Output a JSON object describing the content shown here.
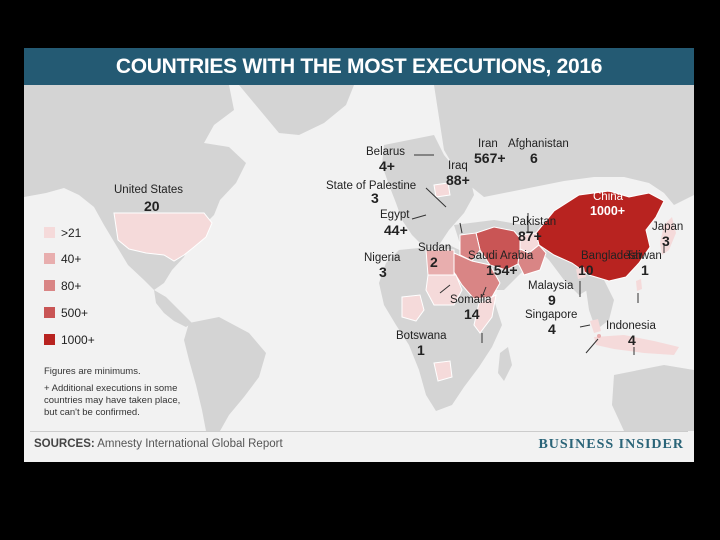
{
  "title": "COUNTRIES WITH THE MOST EXECUTIONS, 2016",
  "colors": {
    "header": "#245a73",
    "land": "#d4d4d4",
    "water": "#f2f2f2",
    "tier_21": "#f5dada",
    "tier_40": "#e8aeae",
    "tier_80": "#d98585",
    "tier_500": "#c95555",
    "tier_1000": "#b82320"
  },
  "legend": [
    {
      "label": ">21",
      "color": "#f5dada"
    },
    {
      "label": "40+",
      "color": "#e8aeae"
    },
    {
      "label": "80+",
      "color": "#d98585"
    },
    {
      "label": "500+",
      "color": "#c95555"
    },
    {
      "label": "1000+",
      "color": "#b82320"
    }
  ],
  "notes": {
    "line1": "Figures are minimums.",
    "line2": "+ Additional executions in some",
    "line3": "countries may have taken place,",
    "line4": "but can't be confirmed."
  },
  "countries": {
    "united_states": {
      "name": "United States",
      "value": "20"
    },
    "belarus": {
      "name": "Belarus",
      "value": "4+"
    },
    "state_of_palestine": {
      "name": "State of Palestine",
      "value": "3"
    },
    "egypt": {
      "name": "Egypt",
      "value": "44+"
    },
    "iraq": {
      "name": "Iraq",
      "value": "88+"
    },
    "iran": {
      "name": "Iran",
      "value": "567+"
    },
    "afghanistan": {
      "name": "Afghanistan",
      "value": "6"
    },
    "china": {
      "name": "China",
      "value": "1000+"
    },
    "japan": {
      "name": "Japan",
      "value": "3"
    },
    "pakistan": {
      "name": "Pakistan",
      "value": "87+"
    },
    "nigeria": {
      "name": "Nigeria",
      "value": "3"
    },
    "sudan": {
      "name": "Sudan",
      "value": "2"
    },
    "saudi_arabia": {
      "name": "Saudi Arabia",
      "value": "154+"
    },
    "bangladesh": {
      "name": "Bangladesh",
      "value": "10"
    },
    "taiwan": {
      "name": "Taiwan",
      "value": "1"
    },
    "malaysia": {
      "name": "Malaysia",
      "value": "9"
    },
    "singapore": {
      "name": "Singapore",
      "value": "4"
    },
    "somalia": {
      "name": "Somalia",
      "value": "14"
    },
    "indonesia": {
      "name": "Indonesia",
      "value": "4"
    },
    "botswana": {
      "name": "Botswana",
      "value": "1"
    }
  },
  "footer": {
    "sources_label": "SOURCES:",
    "sources_text": "Amnesty International Global Report",
    "brand": "BUSINESS INSIDER"
  }
}
